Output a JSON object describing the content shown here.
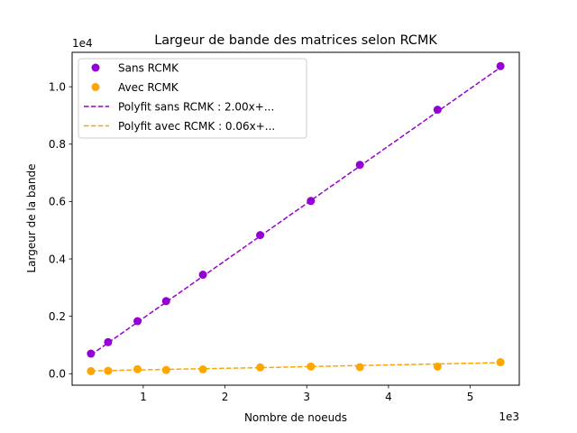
{
  "chart_data": {
    "type": "scatter",
    "title": "Largeur de bande des matrices selon RCMK",
    "xlabel": "Nombre de noeuds",
    "ylabel": "Largeur de la bande",
    "x_scale_label": "1e3",
    "y_scale_label": "1e4",
    "xlim": [
      130,
      5600
    ],
    "ylim": [
      -400,
      11200
    ],
    "x_ticks": [
      1000,
      2000,
      3000,
      4000,
      5000
    ],
    "x_tick_labels": [
      "1",
      "2",
      "3",
      "4",
      "5"
    ],
    "y_ticks": [
      0,
      2000,
      4000,
      6000,
      8000,
      10000
    ],
    "y_tick_labels": [
      "0.0",
      "0.2",
      "0.4",
      "0.6",
      "0.8",
      "1.0"
    ],
    "grid": false,
    "legend_position": "top-left",
    "x": [
      360,
      570,
      930,
      1280,
      1730,
      2430,
      3050,
      3650,
      4600,
      5370
    ],
    "series": [
      {
        "name": "Sans RCMK",
        "kind": "points",
        "color": "#9400d3",
        "values": [
          700,
          1100,
          1830,
          2530,
          3450,
          4830,
          6020,
          7280,
          9200,
          10720
        ]
      },
      {
        "name": "Avec RCMK",
        "kind": "points",
        "color": "#ffa500",
        "values": [
          90,
          100,
          160,
          130,
          150,
          220,
          250,
          230,
          250,
          400
        ]
      },
      {
        "name": "Polyfit sans RCMK : 2.00x+...",
        "kind": "dashed-line",
        "color": "#9400d3",
        "values": [
          655,
          1075,
          1795,
          2495,
          3395,
          4795,
          6035,
          7235,
          9135,
          10675
        ]
      },
      {
        "name": "Polyfit avec RCMK : 0.06x+...",
        "kind": "dashed-line",
        "color": "#ffa500",
        "values": [
          100,
          110,
          130,
          150,
          175,
          210,
          250,
          285,
          340,
          385
        ]
      }
    ]
  }
}
